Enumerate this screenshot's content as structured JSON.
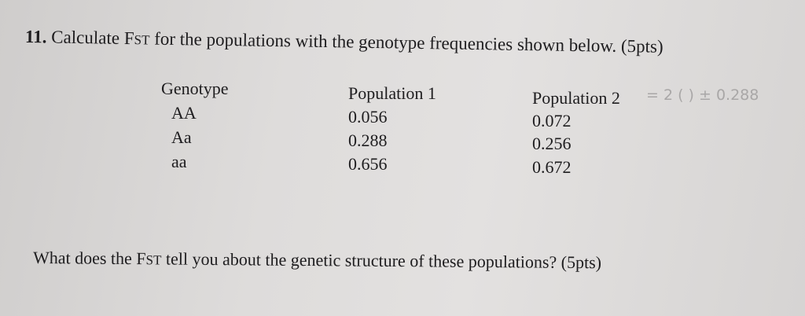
{
  "question_1": {
    "number": "11.",
    "text_before": "Calculate F",
    "subscript": "ST",
    "text_after": " for the populations with the genotype frequencies shown below. (5pts)"
  },
  "table": {
    "header": [
      "Genotype",
      "Population 1",
      "Population 2"
    ],
    "rows": [
      [
        "AA",
        "0.056",
        "0.072"
      ],
      [
        "Aa",
        "0.288",
        "0.256"
      ],
      [
        "aa",
        "0.656",
        "0.672"
      ]
    ]
  },
  "handwritten_note": "= 2 ( ) ± 0.288",
  "question_2": {
    "text_before": "What does the F",
    "subscript": "ST",
    "text_after": " tell you about the genetic structure of these populations? (5pts)"
  }
}
